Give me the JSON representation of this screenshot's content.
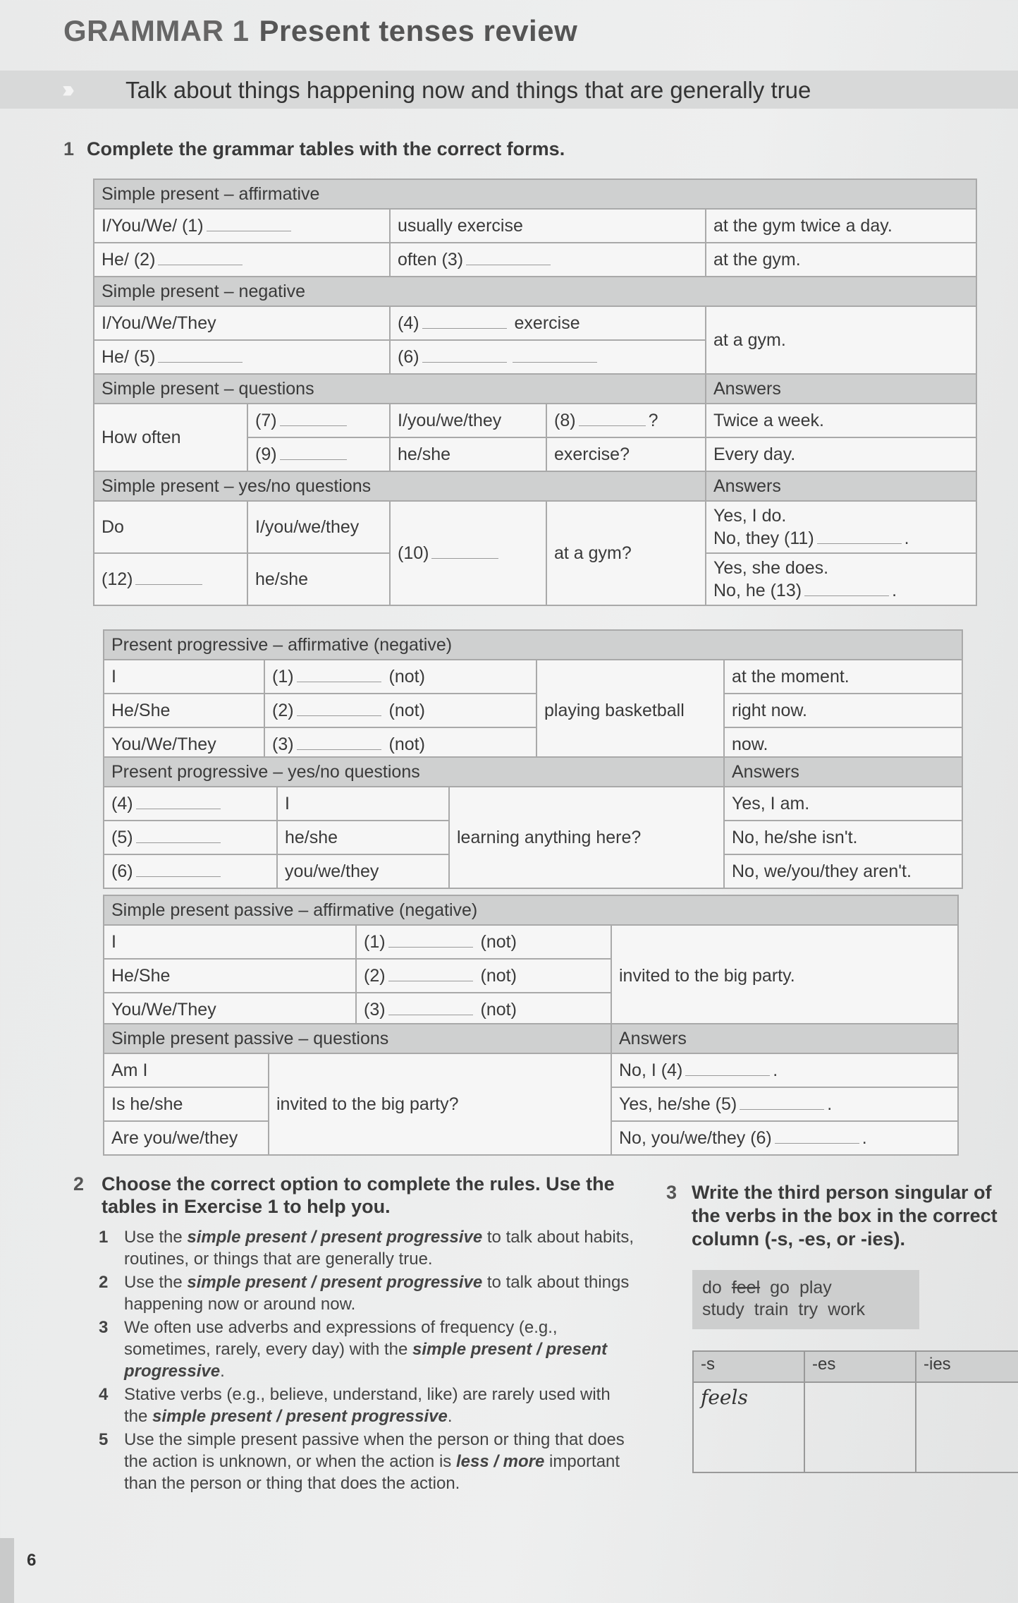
{
  "header": {
    "label": "GRAMMAR 1",
    "title": "Present tenses review",
    "arrows": "›››",
    "subtitle": "Talk about things happening now and things that are generally true"
  },
  "ex1": {
    "num": "1",
    "instruction": "Complete the grammar tables with the correct forms."
  },
  "t1": {
    "aff_head": "Simple present – affirmative",
    "aff_r1": [
      "I/You/We/ (1)",
      "usually exercise",
      "at the gym twice a day."
    ],
    "aff_r2": [
      "He/ (2)",
      "often (3)",
      "at the gym."
    ],
    "neg_head": "Simple present – negative",
    "neg_r1": [
      "I/You/We/They",
      "(4)",
      "exercise"
    ],
    "neg_right": "at a gym.",
    "neg_r2": [
      "He/ (5)",
      "(6)"
    ],
    "q_head": "Simple present – questions",
    "answers": "Answers",
    "how_often": "How often",
    "q_r1": [
      "(7)",
      "I/you/we/they",
      "(8)",
      "?",
      "Twice a week."
    ],
    "q_r2": [
      "(9)",
      "he/she",
      "exercise?",
      "Every day."
    ],
    "yn_head": "Simple present – yes/no questions",
    "yn_r1": [
      "Do",
      "I/you/we/they"
    ],
    "yn_mid": [
      "(10)",
      "at a gym?"
    ],
    "yn_ans1": [
      "Yes, I do.",
      "No, they (11)",
      "."
    ],
    "yn_r2": [
      "(12)",
      "he/she"
    ],
    "yn_ans2": [
      "Yes, she does.",
      "No, he (13)",
      "."
    ]
  },
  "t2": {
    "aff_head": "Present progressive – affirmative (negative)",
    "rows": [
      {
        "subj": "I",
        "num": "(1)",
        "neg": "(not)",
        "end": "at the moment."
      },
      {
        "subj": "He/She",
        "num": "(2)",
        "neg": "(not)",
        "end": "right now."
      },
      {
        "subj": "You/We/They",
        "num": "(3)",
        "neg": "(not)",
        "end": "now."
      }
    ],
    "mid": "playing basketball",
    "yn_head": "Present progressive – yes/no questions",
    "answers": "Answers",
    "yn_rows": [
      {
        "num": "(4)",
        "subj": "I",
        "ans": "Yes, I am."
      },
      {
        "num": "(5)",
        "subj": "he/she",
        "ans": "No, he/she isn't."
      },
      {
        "num": "(6)",
        "subj": "you/we/they",
        "ans": "No, we/you/they aren't."
      }
    ],
    "yn_mid": "learning anything here?"
  },
  "t3": {
    "aff_head": "Simple present passive – affirmative (negative)",
    "rows": [
      {
        "subj": "I",
        "num": "(1)",
        "neg": "(not)"
      },
      {
        "subj": "He/She",
        "num": "(2)",
        "neg": "(not)"
      },
      {
        "subj": "You/We/They",
        "num": "(3)",
        "neg": "(not)"
      }
    ],
    "end": "invited to the big party.",
    "q_head": "Simple present passive – questions",
    "answers": "Answers",
    "q_rows": [
      {
        "q": "Am I",
        "ans": "No, I (4)",
        "p": "."
      },
      {
        "q": "Is he/she",
        "ans": "Yes, he/she (5)",
        "p": "."
      },
      {
        "q": "Are you/we/they",
        "ans": "No, you/we/they (6)",
        "p": "."
      }
    ],
    "q_mid": "invited to the big party?"
  },
  "ex2": {
    "num": "2",
    "instruction": "Choose the correct option to complete the rules. Use the tables in Exercise 1 to help you.",
    "items": [
      {
        "n": "1",
        "a": "Use the ",
        "opt": "simple present / present progressive",
        "b": " to talk about habits, routines, or things that are generally true."
      },
      {
        "n": "2",
        "a": "Use the ",
        "opt": "simple present / present progressive",
        "b": " to talk about things happening now or around now."
      },
      {
        "n": "3",
        "a": "We often use adverbs and expressions of frequency (e.g., sometimes, rarely, every day) with the ",
        "opt": "simple present / present progressive",
        "b": "."
      },
      {
        "n": "4",
        "a": "Stative verbs (e.g., believe, understand, like) are rarely used with the ",
        "opt": "simple present / present progressive",
        "b": "."
      },
      {
        "n": "5",
        "a": "Use the simple present passive when the person or thing that does the action is unknown, or when the action is ",
        "opt": "less / more",
        "b": " important than the person or thing that does the action."
      }
    ]
  },
  "ex3": {
    "num": "3",
    "instruction": "Write the third person singular of the verbs in the box in the correct column (-s, -es, or -ies).",
    "words": [
      "do",
      "feel",
      "go",
      "play",
      "study",
      "train",
      "try",
      "work"
    ],
    "columns": [
      "-s",
      "-es",
      "-ies"
    ],
    "example": "feels"
  },
  "page_number": "6"
}
